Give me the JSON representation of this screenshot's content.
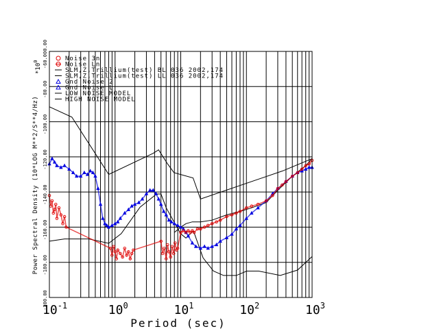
{
  "chart_data": {
    "type": "scatter",
    "xlabel": "Period (sec)",
    "ylabel": "Power Spectral Density (10*LOG M**2/S**4/Hz)",
    "y_multiplier": "*10",
    "y_multiplier_exp": "0",
    "xscale": "log",
    "xlim": [
      0.1,
      1000
    ],
    "ylim": [
      -200,
      -60
    ],
    "x_ticks": [
      {
        "base": "10",
        "exp": "-1",
        "value": 0.1
      },
      {
        "base": "10",
        "exp": "0",
        "value": 1
      },
      {
        "base": "10",
        "exp": "1",
        "value": 10
      },
      {
        "base": "10",
        "exp": "2",
        "value": 100
      },
      {
        "base": "10",
        "exp": "3",
        "value": 1000
      }
    ],
    "y_ticks": [
      "-60.00",
      "-80.00",
      "-100.00",
      "-120.00",
      "-140.00",
      "-160.00",
      "-180.00",
      "-200.00"
    ],
    "y_tick_values": [
      -60,
      -80,
      -100,
      -120,
      -140,
      -160,
      -180,
      -200
    ],
    "y_top_label": "-60.000.00",
    "legend": [
      {
        "label": "Noise 3n",
        "marker": "circle",
        "color": "#e00000"
      },
      {
        "label": "Noise Ln",
        "marker": "circle-line",
        "color": "#e00000"
      },
      {
        "label": "SLM,Z,Trillium(test) BL 036 2002,174",
        "marker": "line",
        "color": "#000000"
      },
      {
        "label": "SLM,Z,Trillium(test) LL 036 2002,174",
        "marker": "line",
        "color": "#000000"
      },
      {
        "label": "Gnd Noise 2",
        "marker": "triangle",
        "color": "#0000e0"
      },
      {
        "label": "Gnd Noise L",
        "marker": "triangle",
        "color": "#0000e0"
      },
      {
        "label": "LOW NOISE MODEL",
        "marker": "line",
        "color": "#000000"
      },
      {
        "label": "HIGH NOISE MODEL",
        "marker": "line",
        "color": "#000000"
      }
    ],
    "series": [
      {
        "name": "HIGH NOISE MODEL",
        "style": "line",
        "color": "#000000",
        "x": [
          0.1,
          0.22,
          0.8,
          3.8,
          4.6,
          6.3,
          7.9,
          15.4,
          20,
          354.8,
          1000
        ],
        "y": [
          -91.5,
          -97.4,
          -130,
          -118,
          -116,
          -124,
          -129,
          -132,
          -144,
          -128,
          -121
        ]
      },
      {
        "name": "LOW NOISE MODEL",
        "style": "line",
        "color": "#000000",
        "x": [
          0.1,
          0.17,
          0.4,
          0.8,
          1.24,
          2.4,
          4.3,
          5,
          6,
          10,
          12,
          15.6,
          21.9,
          31.6,
          45,
          70,
          101,
          154,
          328,
          600,
          1000
        ],
        "y": [
          -168,
          -166.7,
          -166.7,
          -169.2,
          -163.7,
          -148.6,
          -141.1,
          -141.1,
          -149,
          -163.8,
          -166.2,
          -162.1,
          -177.5,
          -185,
          -187.5,
          -187.5,
          -185,
          -185,
          -187.5,
          -184.4,
          -176.7
        ]
      },
      {
        "name": "SLM,Z,Trillium(test) BL 036 2002,174",
        "style": "line",
        "color": "#000000",
        "x": [
          8,
          10,
          12,
          15,
          20,
          30,
          50,
          80,
          120,
          200,
          300,
          500,
          800,
          1000
        ],
        "y": [
          -163,
          -160,
          -158,
          -157,
          -157,
          -156,
          -153,
          -151,
          -149,
          -146,
          -139,
          -131,
          -125,
          -121
        ]
      },
      {
        "name": "Gnd Noise 2",
        "style": "markers",
        "marker": "triangle",
        "color": "#0000e0",
        "x": [
          0.1,
          0.11,
          0.12,
          0.13,
          0.15,
          0.17,
          0.2,
          0.23,
          0.26,
          0.3,
          0.34,
          0.38,
          0.42,
          0.46,
          0.5,
          0.55,
          0.6,
          0.65,
          0.7,
          0.75,
          0.8,
          0.9,
          1.0,
          1.1,
          1.2,
          1.4,
          1.6,
          1.8,
          2.0,
          2.3,
          2.6,
          3.0,
          3.4,
          3.8,
          4.2,
          4.6,
          5.0,
          5.5,
          6.0,
          6.6,
          7.2,
          8.0,
          9.0,
          10,
          11,
          12,
          13,
          15,
          17,
          20,
          23,
          26,
          30,
          35,
          40,
          50,
          60,
          70,
          80,
          100,
          120,
          150,
          200,
          250,
          300,
          400,
          500,
          600,
          700,
          800,
          900,
          1000
        ],
        "y": [
          -124,
          -121,
          -123,
          -125,
          -126,
          -125,
          -127,
          -129,
          -131,
          -131,
          -129,
          -130,
          -128,
          -129,
          -131,
          -138,
          -147,
          -155,
          -158,
          -159,
          -160,
          -159,
          -158,
          -157,
          -155,
          -152,
          -150,
          -148,
          -147,
          -146,
          -144,
          -141,
          -139,
          -139,
          -141,
          -144,
          -147,
          -151,
          -153,
          -156,
          -157,
          -158,
          -159,
          -160,
          -161,
          -163,
          -165,
          -169,
          -171,
          -172,
          -171,
          -172,
          -171,
          -170,
          -168,
          -166,
          -164,
          -161,
          -159,
          -155,
          -152,
          -149,
          -145,
          -141,
          -138,
          -134,
          -131,
          -129,
          -128,
          -127,
          -126,
          -126
        ]
      },
      {
        "name": "Noise 3n",
        "style": "markers",
        "marker": "circle",
        "color": "#e00000",
        "x": [
          0.1,
          0.105,
          0.11,
          0.115,
          0.12,
          0.125,
          0.13,
          0.14,
          0.15,
          0.16,
          0.17,
          0.18,
          0.85,
          0.9,
          0.95,
          1.0,
          1.05,
          1.1,
          1.2,
          1.3,
          1.4,
          1.5,
          1.6,
          1.7,
          1.8,
          1.9,
          5.0,
          5.3,
          5.6,
          6.0,
          6.3,
          6.6,
          7.0,
          7.4,
          7.8,
          8.2,
          8.6,
          9.0,
          10,
          11,
          12,
          13,
          14,
          15,
          16,
          18,
          20,
          23,
          26,
          30,
          35,
          40,
          50,
          60,
          70,
          80,
          100,
          120,
          150,
          200,
          250,
          300,
          350,
          400,
          500,
          600,
          700,
          800,
          900,
          1000
        ],
        "y": [
          -142,
          -148,
          -145,
          -152,
          -150,
          -147,
          -155,
          -149,
          -153,
          -158,
          -154,
          -160,
          -172,
          -176,
          -171,
          -174,
          -178,
          -173,
          -175,
          -177,
          -172,
          -176,
          -174,
          -178,
          -175,
          -173,
          -168,
          -175,
          -172,
          -178,
          -170,
          -174,
          -177,
          -171,
          -175,
          -169,
          -173,
          -172,
          -163,
          -162,
          -163,
          -162,
          -163,
          -162,
          -163,
          -161,
          -161,
          -160,
          -159,
          -158,
          -157,
          -156,
          -154,
          -153,
          -152,
          -151,
          -149,
          -148,
          -147,
          -145,
          -142,
          -138,
          -136,
          -134,
          -131,
          -129,
          -127,
          -125,
          -124,
          -122
        ]
      }
    ],
    "grid": true
  }
}
